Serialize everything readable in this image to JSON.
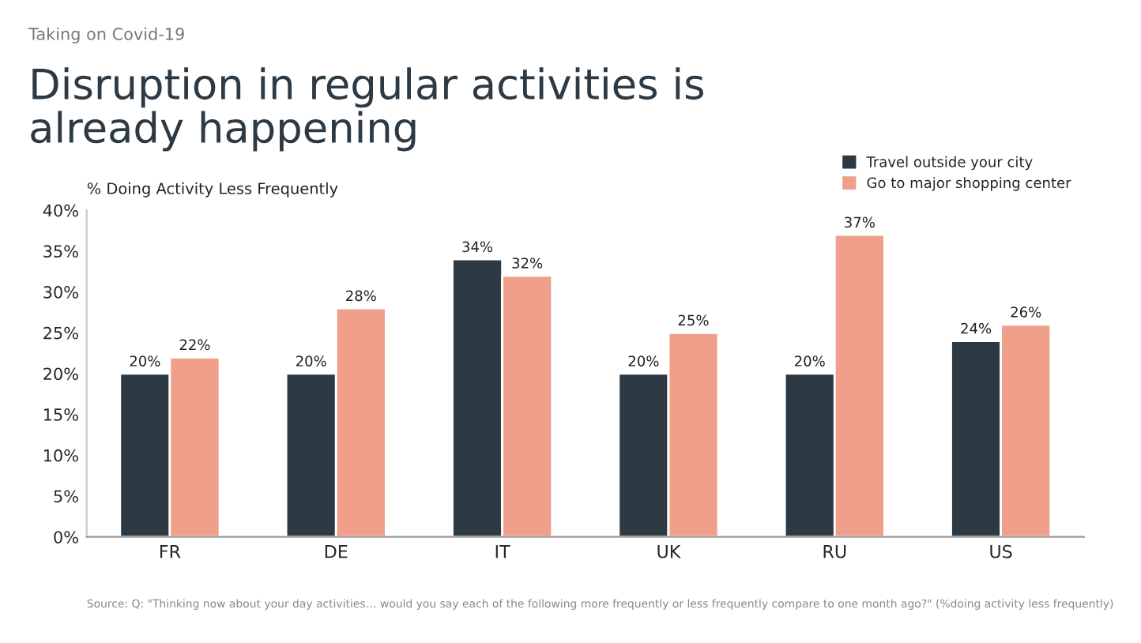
{
  "chart_data": {
    "type": "bar",
    "subtitle": "Taking on Covid-19",
    "title": "Disruption in regular activities is\nalready happening",
    "ylabel": "% Doing Activity Less Frequently",
    "categories": [
      "FR",
      "DE",
      "IT",
      "UK",
      "RU",
      "US"
    ],
    "series": [
      {
        "name": "Travel outside your city",
        "color": "#2d3a44",
        "values": [
          20,
          20,
          34,
          20,
          20,
          24
        ],
        "value_labels": [
          "20%",
          "20%",
          "34%",
          "20%",
          "20%",
          "24%"
        ]
      },
      {
        "name": "Go to major shopping center",
        "color": "#f0a08a",
        "values": [
          22,
          28,
          32,
          25,
          37,
          26
        ],
        "value_labels": [
          "22%",
          "28%",
          "32%",
          "25%",
          "37%",
          "26%"
        ]
      }
    ],
    "ylim": [
      0,
      40
    ],
    "yticks": [
      {
        "value": 0,
        "label": "0%"
      },
      {
        "value": 5,
        "label": "5%"
      },
      {
        "value": 10,
        "label": "10%"
      },
      {
        "value": 15,
        "label": "15%"
      },
      {
        "value": 20,
        "label": "20%"
      },
      {
        "value": 25,
        "label": "25%"
      },
      {
        "value": 30,
        "label": "30%"
      },
      {
        "value": 35,
        "label": "35%"
      },
      {
        "value": 40,
        "label": "40%"
      }
    ],
    "grid": false,
    "legend": "top right",
    "annotations": [
      "Source: Q: \"Thinking now about your day activities… would you say each of the following more frequently or less frequently compare to one month ago?\" (%doing activity less frequently)"
    ]
  }
}
